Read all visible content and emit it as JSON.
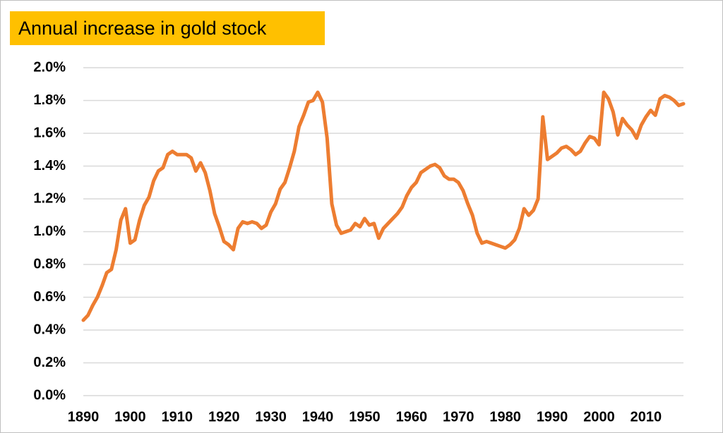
{
  "chart_data": {
    "type": "line",
    "title": "Annual increase in gold stock",
    "x": [
      1890,
      1891,
      1892,
      1893,
      1894,
      1895,
      1896,
      1897,
      1898,
      1899,
      1900,
      1901,
      1902,
      1903,
      1904,
      1905,
      1906,
      1907,
      1908,
      1909,
      1910,
      1911,
      1912,
      1913,
      1914,
      1915,
      1916,
      1917,
      1918,
      1919,
      1920,
      1921,
      1922,
      1923,
      1924,
      1925,
      1926,
      1927,
      1928,
      1929,
      1930,
      1931,
      1932,
      1933,
      1934,
      1935,
      1936,
      1937,
      1938,
      1939,
      1940,
      1941,
      1942,
      1943,
      1944,
      1945,
      1946,
      1947,
      1948,
      1949,
      1950,
      1951,
      1952,
      1953,
      1954,
      1955,
      1956,
      1957,
      1958,
      1959,
      1960,
      1961,
      1962,
      1963,
      1964,
      1965,
      1966,
      1967,
      1968,
      1969,
      1970,
      1971,
      1972,
      1973,
      1974,
      1975,
      1976,
      1977,
      1978,
      1979,
      1980,
      1981,
      1982,
      1983,
      1984,
      1985,
      1986,
      1987,
      1988,
      1989,
      1990,
      1991,
      1992,
      1993,
      1994,
      1995,
      1996,
      1997,
      1998,
      1999,
      2000,
      2001,
      2002,
      2003,
      2004,
      2005,
      2006,
      2007,
      2008,
      2009,
      2010,
      2011,
      2012,
      2013,
      2014,
      2015,
      2016,
      2017,
      2018
    ],
    "series": [
      {
        "color": "#ed7d31",
        "values": [
          0.46,
          0.49,
          0.55,
          0.6,
          0.67,
          0.75,
          0.77,
          0.89,
          1.07,
          1.14,
          0.93,
          0.95,
          1.07,
          1.16,
          1.21,
          1.31,
          1.37,
          1.39,
          1.47,
          1.49,
          1.47,
          1.47,
          1.47,
          1.45,
          1.37,
          1.42,
          1.36,
          1.25,
          1.11,
          1.03,
          0.94,
          0.92,
          0.89,
          1.02,
          1.06,
          1.05,
          1.06,
          1.05,
          1.02,
          1.04,
          1.12,
          1.17,
          1.26,
          1.3,
          1.39,
          1.49,
          1.64,
          1.71,
          1.79,
          1.8,
          1.85,
          1.79,
          1.57,
          1.17,
          1.04,
          0.99,
          1.0,
          1.01,
          1.05,
          1.03,
          1.08,
          1.04,
          1.05,
          0.96,
          1.02,
          1.05,
          1.08,
          1.11,
          1.15,
          1.22,
          1.27,
          1.3,
          1.36,
          1.38,
          1.4,
          1.41,
          1.39,
          1.34,
          1.32,
          1.32,
          1.3,
          1.25,
          1.17,
          1.1,
          0.99,
          0.93,
          0.94,
          0.93,
          0.92,
          0.91,
          0.9,
          0.92,
          0.95,
          1.02,
          1.14,
          1.1,
          1.13,
          1.2,
          1.7,
          1.44,
          1.46,
          1.48,
          1.51,
          1.52,
          1.5,
          1.47,
          1.49,
          1.54,
          1.58,
          1.57,
          1.53,
          1.85,
          1.81,
          1.73,
          1.59,
          1.69,
          1.65,
          1.62,
          1.57,
          1.65,
          1.7,
          1.74,
          1.71,
          1.81,
          1.83,
          1.82,
          1.8,
          1.77,
          1.78
        ]
      }
    ],
    "xlim": [
      1890,
      2018
    ],
    "xticks": [
      1890,
      1900,
      1910,
      1920,
      1930,
      1940,
      1950,
      1960,
      1970,
      1980,
      1990,
      2000,
      2010
    ],
    "ylim": [
      0,
      2.0
    ],
    "yticks": [
      {
        "value": 0,
        "label": "0.0%"
      },
      {
        "value": 0.2,
        "label": "0.2%"
      },
      {
        "value": 0.4,
        "label": "0.4%"
      },
      {
        "value": 0.6,
        "label": "0.6%"
      },
      {
        "value": 0.8,
        "label": "0.8%"
      },
      {
        "value": 1.0,
        "label": "1.0%"
      },
      {
        "value": 1.2,
        "label": "1.2%"
      },
      {
        "value": 1.4,
        "label": "1.4%"
      },
      {
        "value": 1.6,
        "label": "1.6%"
      },
      {
        "value": 1.8,
        "label": "1.8%"
      },
      {
        "value": 2.0,
        "label": "2.0%"
      }
    ],
    "grid": true
  }
}
